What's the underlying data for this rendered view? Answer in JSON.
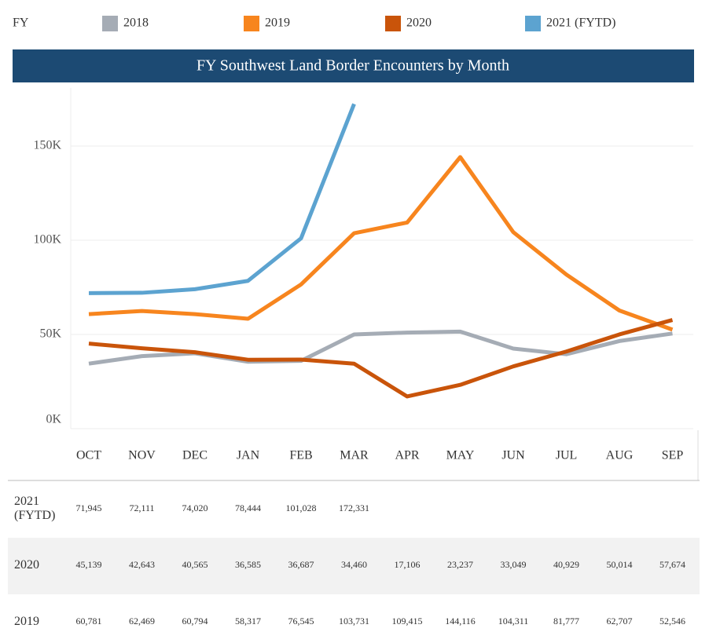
{
  "chart_data": {
    "type": "line",
    "title": "FY Southwest Land Border Encounters by Month",
    "legend_title": "FY",
    "legend_position": "top",
    "categories": [
      "OCT",
      "NOV",
      "DEC",
      "JAN",
      "FEB",
      "MAR",
      "APR",
      "MAY",
      "JUN",
      "JUL",
      "AUG",
      "SEP"
    ],
    "ylim": [
      0,
      180000
    ],
    "yticks": [
      {
        "value": 0,
        "label": "0K"
      },
      {
        "value": 50000,
        "label": "50K"
      },
      {
        "value": 100000,
        "label": "100K"
      },
      {
        "value": 150000,
        "label": "150K"
      }
    ],
    "grid": true,
    "series": [
      {
        "name": "2018",
        "color": "#a5acb5",
        "values": [
          34500,
          38500,
          40000,
          35500,
          36000,
          50000,
          51000,
          51500,
          42500,
          39500,
          46500,
          50500
        ]
      },
      {
        "name": "2019",
        "color": "#f7851e",
        "values": [
          60781,
          62469,
          60794,
          58317,
          76545,
          103731,
          109415,
          144116,
          104311,
          81777,
          62707,
          52546
        ],
        "value_labels": [
          "60,781",
          "62,469",
          "60,794",
          "58,317",
          "76,545",
          "103,731",
          "109,415",
          "144,116",
          "104,311",
          "81,777",
          "62,707",
          "52,546"
        ]
      },
      {
        "name": "2020",
        "color": "#c9540a",
        "values": [
          45139,
          42643,
          40565,
          36585,
          36687,
          34460,
          17106,
          23237,
          33049,
          40929,
          50014,
          57674
        ],
        "value_labels": [
          "45,139",
          "42,643",
          "40,565",
          "36,585",
          "36,687",
          "34,460",
          "17,106",
          "23,237",
          "33,049",
          "40,929",
          "50,014",
          "57,674"
        ]
      },
      {
        "name": "2021 (FYTD)",
        "color": "#5ca3d0",
        "values": [
          71945,
          72111,
          74020,
          78444,
          101028,
          172331,
          null,
          null,
          null,
          null,
          null,
          null
        ],
        "value_labels": [
          "71,945",
          "72,111",
          "74,020",
          "78,444",
          "101,028",
          "172,331",
          null,
          null,
          null,
          null,
          null,
          null
        ]
      }
    ]
  }
}
